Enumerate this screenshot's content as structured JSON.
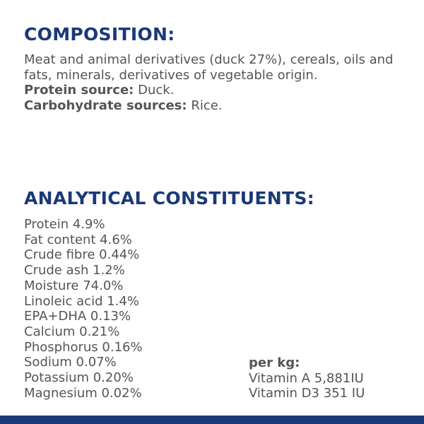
{
  "composition": {
    "heading": "COMPOSITION:",
    "text": "Meat and animal derivatives (duck 27%), cereals, oils and fats, minerals, derivatives of vegetable origin.",
    "protein_source": {
      "label": "Protein source:",
      "value": "Duck."
    },
    "carbohydrate_sources": {
      "label": "Carbohydrate sources:",
      "value": "Rice."
    }
  },
  "analytical_constituents": {
    "heading": "ANALYTICAL CONSTITUENTS:",
    "items": [
      "Protein 4.9%",
      "Fat content 4.6%",
      "Crude fibre 0.44%",
      "Crude ash 1.2%",
      "Moisture 74.0%",
      "Linoleic acid 1.4%",
      "EPA+DHA 0.13%",
      "Calcium 0.21%",
      "Phosphorus 0.16%",
      "Sodium 0.07%",
      "Potassium 0.20%",
      "Magnesium 0.02%"
    ],
    "per_kg": {
      "label": "per kg:",
      "items": [
        "Vitamin A 5,881IU",
        "Vitamin D3 351 IU"
      ]
    }
  }
}
